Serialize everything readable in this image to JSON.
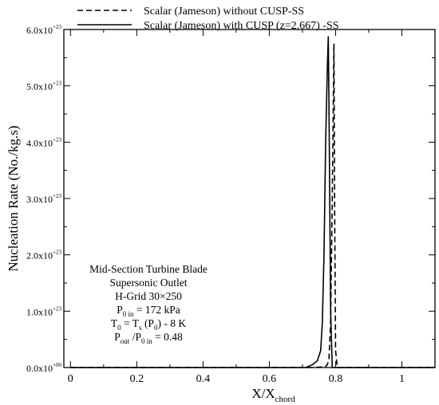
{
  "chart_data": {
    "type": "line",
    "xlabel": "X/X",
    "xlabel_sub": "chord",
    "ylabel": "Nucleation Rate (No./kg.s)",
    "xlim": [
      -0.02,
      1.1
    ],
    "ylim": [
      0,
      6.0
    ],
    "y_exponent_label": "x10",
    "x_ticks": [
      0,
      0.2,
      0.4,
      0.6,
      0.8,
      1
    ],
    "x_tick_labels": [
      "0",
      "0.2",
      "0.4",
      "0.6",
      "0.8",
      "1"
    ],
    "y_ticks": [
      {
        "value": 0,
        "mantissa": "0.0",
        "exp": "+00"
      },
      {
        "value": 1,
        "mantissa": "1.0",
        "exp": "+23"
      },
      {
        "value": 2,
        "mantissa": "2.0",
        "exp": "+23"
      },
      {
        "value": 3,
        "mantissa": "3.0",
        "exp": "+23"
      },
      {
        "value": 4,
        "mantissa": "4.0",
        "exp": "+23"
      },
      {
        "value": 5,
        "mantissa": "5.0",
        "exp": "+23"
      },
      {
        "value": 6,
        "mantissa": "6.0",
        "exp": "+23"
      }
    ],
    "grid": false,
    "legend_position": "top-right",
    "series": [
      {
        "name": "Scalar (Jameson) without CUSP-SS",
        "style": "dashed",
        "color": "#000000",
        "x": [
          0.0,
          0.74,
          0.77,
          0.775,
          0.78,
          0.785,
          0.79,
          0.795,
          0.797,
          0.8,
          0.805,
          1.1
        ],
        "y": [
          0,
          0,
          0.02,
          0.05,
          0.15,
          0.8,
          3.0,
          5.75,
          3.0,
          0.3,
          0,
          0
        ]
      },
      {
        "name": "Scalar (Jameson) with CUSP (z=2.667) -SS",
        "style": "solid",
        "color": "#000000",
        "x": [
          0.0,
          0.71,
          0.73,
          0.745,
          0.755,
          0.76,
          0.765,
          0.77,
          0.775,
          0.778,
          0.781,
          0.785,
          0.79,
          1.1
        ],
        "y": [
          0,
          0,
          0.05,
          0.12,
          0.3,
          0.8,
          2.0,
          4.0,
          5.3,
          5.88,
          4.0,
          1.0,
          0,
          0
        ]
      }
    ],
    "annotation": {
      "line1": "Mid-Section Turbine Blade",
      "line2": "Supersonic Outlet",
      "line3": "H-Grid 30×250",
      "p0_label": "P",
      "p0_sub": "0 in",
      "p0_value": " = 172 kPa",
      "t0_label": "T",
      "t0_sub": "0",
      "t0_mid": " = T",
      "ts_sub": "s",
      "t0_paren": " (P",
      "t0_psub": "0",
      "t0_tail": ") - 8 K",
      "pr_label": "P",
      "pr_sub": "out",
      "pr_mid": " /P",
      "pr_sub2": "0 in",
      "pr_value": " = 0.48"
    }
  }
}
